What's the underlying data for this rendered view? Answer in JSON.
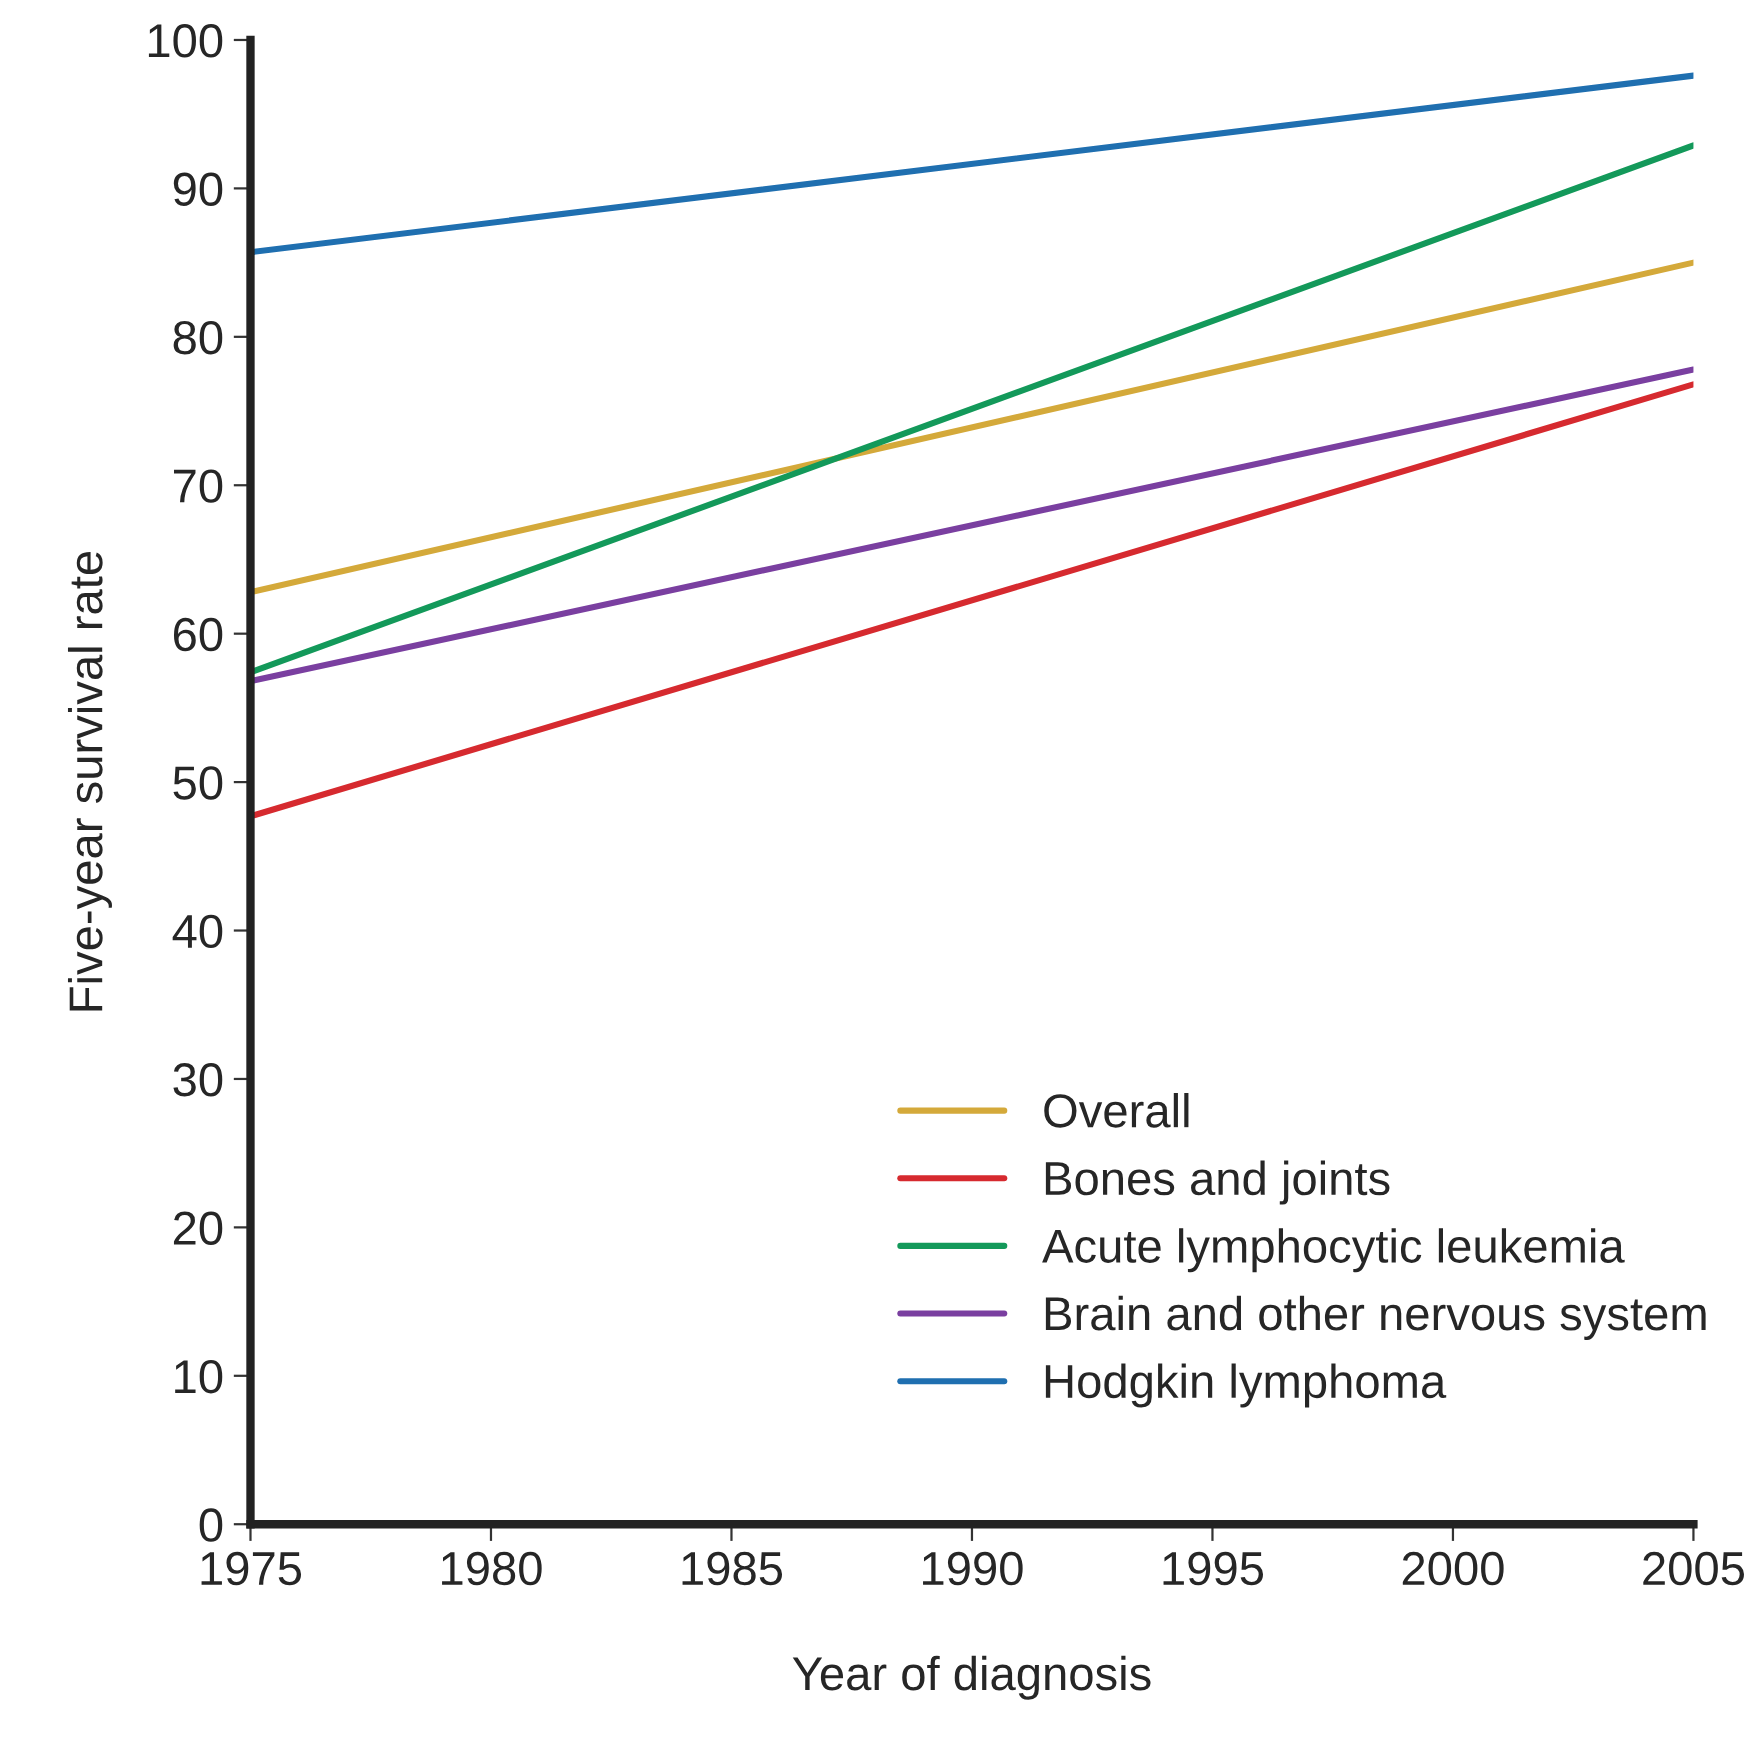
{
  "chart_data": {
    "type": "line",
    "xlabel": "Year of diagnosis",
    "ylabel": "Five-year survival rate",
    "x": [
      1975,
      2005
    ],
    "series": [
      {
        "name": "Overall",
        "color": "#d4a93a",
        "values": [
          62.8,
          85.0
        ]
      },
      {
        "name": "Bones and joints",
        "color": "#d62a2f",
        "values": [
          47.7,
          76.8
        ]
      },
      {
        "name": "Acute lymphocytic leukemia",
        "color": "#13995a",
        "values": [
          57.4,
          92.9
        ]
      },
      {
        "name": "Brain and other nervous system",
        "color": "#7a3fa0",
        "values": [
          56.8,
          77.8
        ]
      },
      {
        "name": "Hodgkin lymphoma",
        "color": "#1f6fb0",
        "values": [
          85.7,
          97.6
        ]
      }
    ],
    "xlim": [
      1975,
      2005
    ],
    "xticks": [
      1975,
      1980,
      1985,
      1990,
      1995,
      2000,
      2005
    ],
    "ylim": [
      0,
      100
    ],
    "yticks": [
      0,
      10,
      20,
      30,
      40,
      50,
      60,
      70,
      80,
      90,
      100
    ],
    "grid": false,
    "legend": "bottom right",
    "marker": "none",
    "line_style": "solid"
  }
}
